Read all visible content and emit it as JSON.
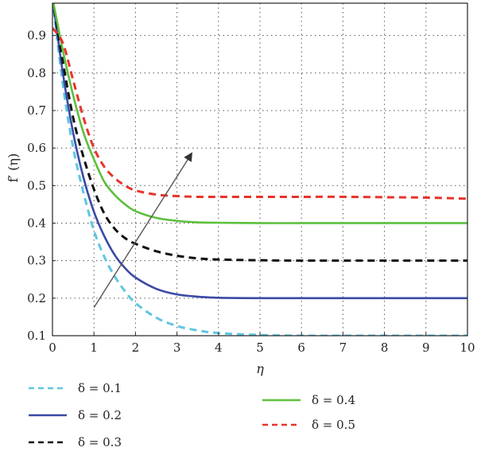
{
  "chart_data": {
    "type": "line",
    "title": "",
    "xlabel": "η",
    "ylabel": "f′ (η)",
    "xlim": [
      0,
      10
    ],
    "ylim": [
      0.1,
      1.0
    ],
    "xticks": [
      0,
      1,
      2,
      3,
      4,
      5,
      6,
      7,
      8,
      9,
      10
    ],
    "yticks": [
      0.1,
      0.2,
      0.3,
      0.4,
      0.5,
      0.6,
      0.7,
      0.8,
      0.9
    ],
    "grid": true,
    "legend_position": "bottom",
    "x": [
      0,
      0.25,
      0.5,
      0.75,
      1,
      1.25,
      1.5,
      1.75,
      2,
      2.5,
      3,
      3.5,
      4,
      5,
      6,
      7,
      8,
      9,
      10
    ],
    "series": [
      {
        "name": "δ = 0.1",
        "color": "#5fc6e0",
        "dash": "dashed",
        "values": [
          1.0,
          0.77,
          0.6,
          0.48,
          0.38,
          0.31,
          0.258,
          0.218,
          0.187,
          0.148,
          0.126,
          0.114,
          0.107,
          0.102,
          0.1,
          0.1,
          0.1,
          0.1,
          0.1
        ]
      },
      {
        "name": "δ = 0.2",
        "color": "#3a49a6",
        "dash": "solid",
        "values": [
          1.0,
          0.8,
          0.64,
          0.52,
          0.43,
          0.365,
          0.315,
          0.28,
          0.255,
          0.225,
          0.21,
          0.204,
          0.201,
          0.2,
          0.2,
          0.2,
          0.2,
          0.2,
          0.2
        ]
      },
      {
        "name": "δ = 0.3",
        "color": "#111111",
        "dash": "dashed",
        "values": [
          1.0,
          0.83,
          0.68,
          0.575,
          0.49,
          0.425,
          0.385,
          0.36,
          0.345,
          0.325,
          0.313,
          0.306,
          0.303,
          0.301,
          0.3,
          0.3,
          0.3,
          0.3,
          0.3
        ]
      },
      {
        "name": "δ = 0.4",
        "color": "#5cbf3c",
        "dash": "solid",
        "values": [
          1.0,
          0.86,
          0.74,
          0.64,
          0.57,
          0.51,
          0.475,
          0.45,
          0.432,
          0.414,
          0.406,
          0.402,
          0.401,
          0.4,
          0.4,
          0.4,
          0.4,
          0.4,
          0.4
        ]
      },
      {
        "name": "δ = 0.5",
        "color": "#e8332b",
        "dash": "dashed",
        "values": [
          0.92,
          0.88,
          0.78,
          0.68,
          0.6,
          0.55,
          0.52,
          0.5,
          0.487,
          0.476,
          0.472,
          0.47,
          0.47,
          0.47,
          0.47,
          0.47,
          0.469,
          0.468,
          0.465
        ]
      }
    ]
  }
}
